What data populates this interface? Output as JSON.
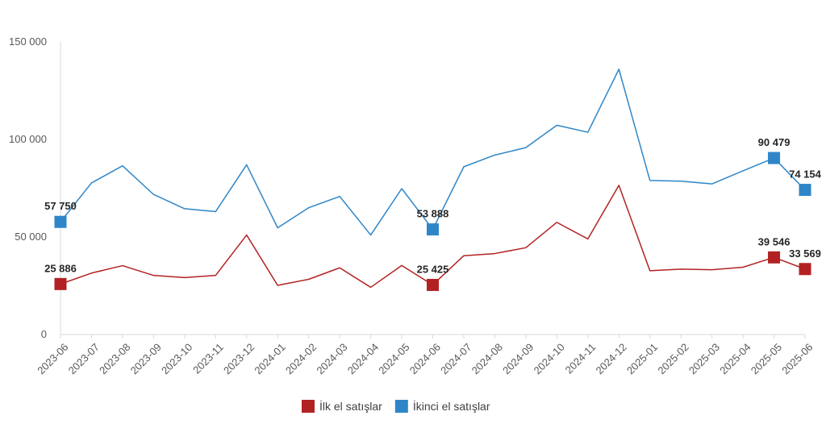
{
  "chart_data": {
    "type": "line",
    "x": [
      "2023-06",
      "2023-07",
      "2023-08",
      "2023-09",
      "2023-10",
      "2023-11",
      "2023-12",
      "2024-01",
      "2024-02",
      "2024-03",
      "2024-04",
      "2024-05",
      "2024-06",
      "2024-07",
      "2024-08",
      "2024-09",
      "2024-10",
      "2024-11",
      "2024-12",
      "2025-01",
      "2025-02",
      "2025-03",
      "2025-04",
      "2025-05",
      "2025-06"
    ],
    "ylim": [
      0,
      150000
    ],
    "yticks": [
      0,
      50000,
      100000,
      150000
    ],
    "ytick_labels": [
      "0",
      "50 000",
      "100 000",
      "150 000"
    ],
    "grid": false,
    "legend_position": "bottom",
    "series": [
      {
        "name": "İlk el satışlar",
        "color": "#b22222",
        "values": [
          25886,
          31500,
          35300,
          30300,
          29200,
          30300,
          51000,
          25200,
          28300,
          34200,
          24200,
          35400,
          25425,
          40400,
          41500,
          44500,
          57500,
          49000,
          76500,
          32700,
          33500,
          33200,
          34500,
          39546,
          33569
        ],
        "markers": [
          {
            "index": 0,
            "label": "25 886"
          },
          {
            "index": 12,
            "label": "25 425"
          },
          {
            "index": 23,
            "label": "39 546"
          },
          {
            "index": 24,
            "label": "33 569"
          }
        ]
      },
      {
        "name": "İkinci el satışlar",
        "color": "#2e86c8",
        "values": [
          57750,
          77700,
          86500,
          71800,
          64500,
          63000,
          87000,
          54700,
          65000,
          70800,
          51000,
          74800,
          53888,
          86000,
          92000,
          95800,
          107300,
          103700,
          136000,
          79000,
          78600,
          77200,
          83900,
          90479,
          74154
        ],
        "markers": [
          {
            "index": 0,
            "label": "57 750"
          },
          {
            "index": 12,
            "label": "53 888"
          },
          {
            "index": 23,
            "label": "90 479"
          },
          {
            "index": 24,
            "label": "74 154"
          }
        ]
      }
    ]
  }
}
